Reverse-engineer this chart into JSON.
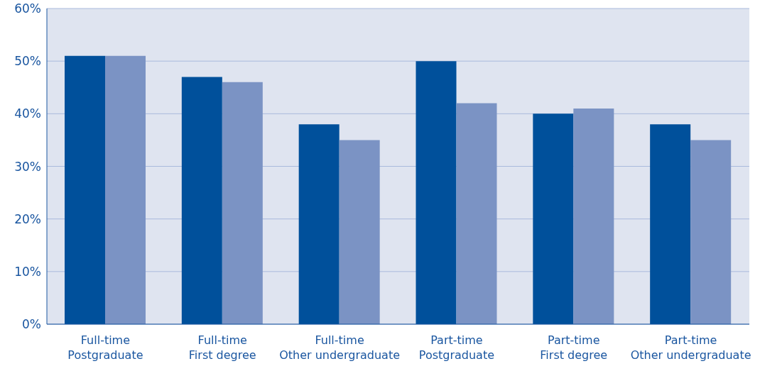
{
  "chart_data": {
    "type": "bar",
    "categories": [
      "Full-time\nPostgraduate",
      "Full-time\nFirst degree",
      "Full-time\nOther undergraduate",
      "Part-time\nPostgraduate",
      "Part-time\nFirst degree",
      "Part-time\nOther undergraduate"
    ],
    "series": [
      {
        "color": "#00509b",
        "values": [
          51,
          47,
          38,
          50,
          40,
          38
        ]
      },
      {
        "color": "#7b93c4",
        "values": [
          51,
          46,
          35,
          42,
          41,
          35
        ]
      }
    ],
    "ylim": [
      0,
      60
    ],
    "yticks": [
      {
        "value": 0,
        "label": "0%"
      },
      {
        "value": 10,
        "label": "10%"
      },
      {
        "value": 20,
        "label": "20%"
      },
      {
        "value": 30,
        "label": "30%"
      },
      {
        "value": 40,
        "label": "40%"
      },
      {
        "value": 50,
        "label": "50%"
      },
      {
        "value": 60,
        "label": "60%"
      }
    ],
    "grid": "y",
    "legend": false
  }
}
